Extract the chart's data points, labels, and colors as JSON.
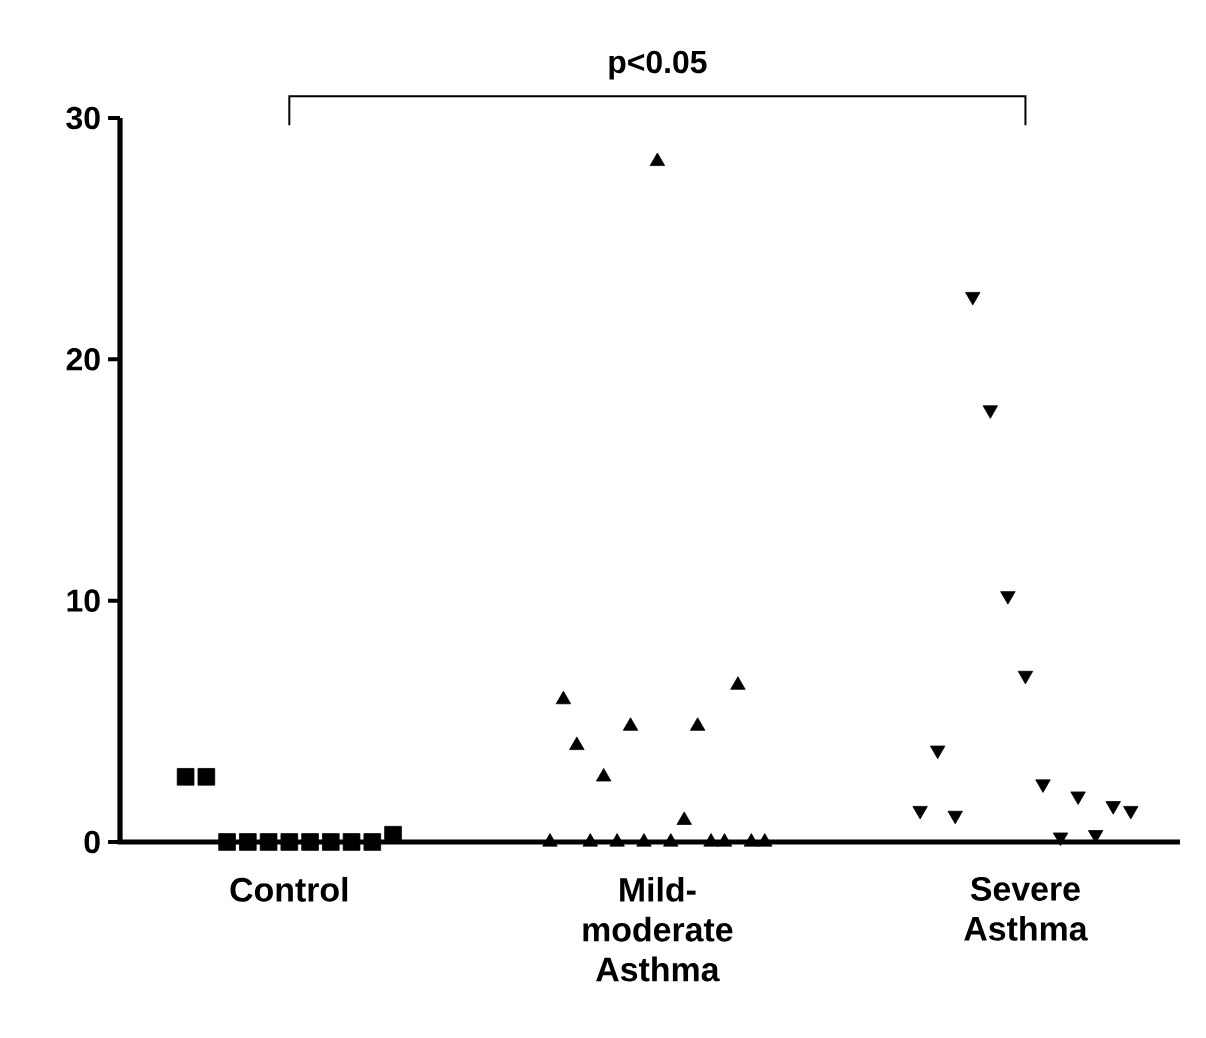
{
  "chart_data": {
    "type": "scatter",
    "categories": [
      "Control",
      "Mild-moderate Asthma",
      "Severe Asthma"
    ],
    "ylim": [
      0,
      30
    ],
    "yticks": [
      0,
      10,
      20,
      30
    ],
    "grid": false,
    "annotations": [
      "p<0.05"
    ],
    "series": [
      {
        "x": [
          "Control",
          "Control",
          "Control",
          "Control",
          "Control",
          "Control",
          "Control",
          "Control",
          "Control",
          "Control",
          "Control"
        ],
        "values": [
          2.7,
          2.7,
          0,
          0,
          0,
          0,
          0,
          0,
          0,
          0,
          0.3
        ],
        "color": "#000000",
        "marker": "square"
      },
      {
        "x": [
          "Mild-moderate Asthma",
          "Mild-moderate Asthma",
          "Mild-moderate Asthma",
          "Mild-moderate Asthma",
          "Mild-moderate Asthma",
          "Mild-moderate Asthma",
          "Mild-moderate Asthma",
          "Mild-moderate Asthma",
          "Mild-moderate Asthma",
          "Mild-moderate Asthma",
          "Mild-moderate Asthma",
          "Mild-moderate Asthma",
          "Mild-moderate Asthma",
          "Mild-moderate Asthma",
          "Mild-moderate Asthma",
          "Mild-moderate Asthma",
          "Mild-moderate Asthma"
        ],
        "values": [
          0,
          5.9,
          4.0,
          0,
          2.7,
          0,
          4.8,
          0,
          28.2,
          0,
          0.9,
          4.8,
          0,
          0,
          6.5,
          0,
          0
        ],
        "color": "#000000",
        "marker": "triangle"
      },
      {
        "x": [
          "Severe Asthma",
          "Severe Asthma",
          "Severe Asthma",
          "Severe Asthma",
          "Severe Asthma",
          "Severe Asthma",
          "Severe Asthma",
          "Severe Asthma",
          "Severe Asthma",
          "Severe Asthma",
          "Severe Asthma",
          "Severe Asthma",
          "Severe Asthma"
        ],
        "values": [
          1.3,
          3.8,
          1.1,
          22.6,
          17.9,
          10.2,
          6.9,
          2.4,
          0.2,
          1.9,
          0.3,
          1.5,
          1.3
        ],
        "color": "#000000",
        "marker": "triangle-down"
      }
    ]
  }
}
